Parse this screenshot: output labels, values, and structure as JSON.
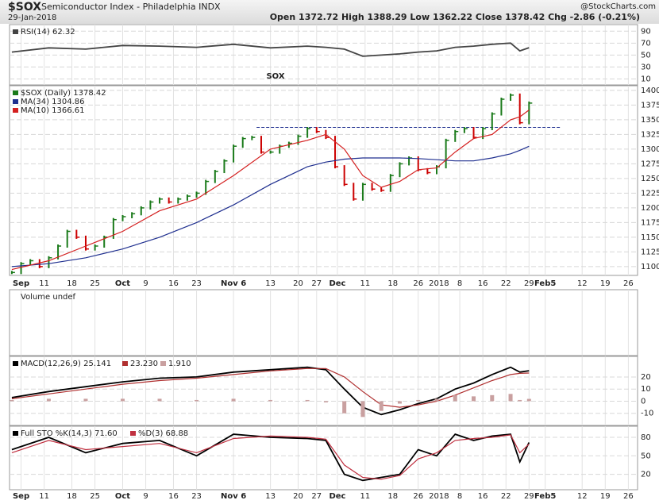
{
  "header": {
    "symbol": "$SOX",
    "name": "Semiconductor Index - Philadelphia INDX",
    "date": "29-Jan-2018",
    "source": "@StockCharts.com",
    "ohlc": "Open 1372.72  High 1388.29  Low 1362.22  Close 1378.42  Chg -2.86 (-0.21%)"
  },
  "x_axis": {
    "xlim": [
      -0.5,
      135.5
    ],
    "xticks": [
      {
        "value": 2,
        "label": "Sep"
      },
      {
        "value": 7,
        "label": "11"
      },
      {
        "value": 13,
        "label": "18"
      },
      {
        "value": 18,
        "label": "25"
      },
      {
        "value": 24,
        "label": "Oct"
      },
      {
        "value": 29,
        "label": "9"
      },
      {
        "value": 35,
        "label": "16"
      },
      {
        "value": 40,
        "label": "23"
      },
      {
        "value": 48,
        "label": "Nov 6"
      },
      {
        "value": 56,
        "label": "13"
      },
      {
        "value": 62,
        "label": "20"
      },
      {
        "value": 66,
        "label": "27"
      },
      {
        "value": 70.5,
        "label": "Dec"
      },
      {
        "value": 76.5,
        "label": "11"
      },
      {
        "value": 82.5,
        "label": "18"
      },
      {
        "value": 88,
        "label": "26"
      },
      {
        "value": 92.5,
        "label": "2018"
      },
      {
        "value": 97,
        "label": "8"
      },
      {
        "value": 102,
        "label": "16"
      },
      {
        "value": 107,
        "label": "22"
      },
      {
        "value": 112,
        "label": "29"
      },
      {
        "value": 115.5,
        "label": "Feb5"
      },
      {
        "value": 123.5,
        "label": "12"
      },
      {
        "value": 128.5,
        "label": "19"
      },
      {
        "value": 133.5,
        "label": "26"
      }
    ]
  },
  "chart_data": [
    {
      "type": "line",
      "ylim": [
        0,
        101
      ],
      "yticks": [
        10,
        30,
        50,
        70,
        90
      ],
      "x": [
        0,
        8,
        16,
        24,
        32,
        40,
        48,
        56,
        64,
        68,
        72,
        76,
        80,
        84,
        88,
        92,
        96,
        100,
        104,
        108,
        110,
        112
      ],
      "series": [
        {
          "name": "RSI(14) 62.32",
          "color": "#444444",
          "values": [
            55,
            62,
            60,
            66,
            65,
            63,
            68,
            62,
            65,
            63,
            60,
            48,
            50,
            52,
            55,
            57,
            63,
            65,
            68,
            70,
            57,
            62.32
          ]
        }
      ]
    },
    {
      "type": "price",
      "ylim": [
        1085,
        1408
      ],
      "yticks": [
        1100,
        1125,
        1150,
        1175,
        1200,
        1225,
        1250,
        1275,
        1300,
        1325,
        1350,
        1375,
        1400
      ],
      "annotation": "SOX",
      "reference_line": {
        "value": 1337,
        "x": [
          53,
          119
        ]
      },
      "up_color": "#1a7a1a",
      "down_color": "#cc0000",
      "series": [
        {
          "name": "$SOX (Daily) 1378.42",
          "color": "#1a7a1a",
          "x": [
            0,
            2,
            4,
            6,
            8,
            10,
            12,
            14,
            16,
            18,
            20,
            22,
            24,
            26,
            28,
            30,
            32,
            34,
            36,
            38,
            40,
            42,
            44,
            46,
            48,
            50,
            52,
            54,
            56,
            58,
            60,
            62,
            64,
            66,
            68,
            70,
            72,
            74,
            76,
            78,
            80,
            82,
            84,
            86,
            88,
            90,
            92,
            94,
            96,
            98,
            100,
            102,
            104,
            106,
            108,
            110,
            112
          ],
          "values": [
            1090,
            1105,
            1110,
            1100,
            1115,
            1135,
            1160,
            1150,
            1130,
            1135,
            1150,
            1180,
            1185,
            1190,
            1200,
            1210,
            1215,
            1210,
            1215,
            1220,
            1225,
            1245,
            1262,
            1280,
            1305,
            1318,
            1320,
            1295,
            1295,
            1305,
            1310,
            1322,
            1335,
            1330,
            1320,
            1270,
            1240,
            1215,
            1240,
            1232,
            1230,
            1255,
            1275,
            1285,
            1265,
            1260,
            1270,
            1315,
            1330,
            1335,
            1320,
            1335,
            1360,
            1385,
            1392,
            1345,
            1378.42
          ]
        },
        {
          "name": "MA(34) 1304.86",
          "color": "#1f2f8f",
          "x": [
            0,
            8,
            16,
            24,
            32,
            40,
            48,
            56,
            64,
            68,
            72,
            76,
            80,
            84,
            88,
            92,
            96,
            100,
            104,
            108,
            110,
            112
          ],
          "values": [
            1100,
            1105,
            1115,
            1130,
            1150,
            1175,
            1205,
            1240,
            1270,
            1278,
            1283,
            1285,
            1285,
            1285,
            1284,
            1282,
            1280,
            1280,
            1285,
            1292,
            1298,
            1304.86
          ]
        },
        {
          "name": "MA(10) 1366.61",
          "color": "#d42020",
          "x": [
            0,
            8,
            16,
            24,
            32,
            40,
            48,
            56,
            64,
            68,
            72,
            76,
            80,
            84,
            88,
            92,
            96,
            100,
            104,
            108,
            110,
            112
          ],
          "values": [
            1095,
            1110,
            1135,
            1160,
            1195,
            1215,
            1255,
            1300,
            1315,
            1325,
            1300,
            1255,
            1235,
            1245,
            1265,
            1268,
            1295,
            1318,
            1325,
            1350,
            1355,
            1366.61
          ]
        }
      ]
    },
    {
      "type": "volume",
      "title": "Volume undef"
    },
    {
      "type": "macd",
      "ylim": [
        -20,
        37
      ],
      "yticks": [
        -10,
        0,
        10,
        20
      ],
      "x": [
        0,
        8,
        16,
        24,
        32,
        40,
        48,
        56,
        64,
        68,
        72,
        76,
        80,
        84,
        88,
        92,
        96,
        100,
        104,
        108,
        110,
        112
      ],
      "series": [
        {
          "name": "MACD(12,26,9) 25.141",
          "color": "#000000",
          "values": [
            3,
            8,
            12,
            16,
            19,
            20,
            24,
            26,
            28,
            26,
            10,
            -5,
            -11,
            -7,
            -2,
            2,
            10,
            15,
            22,
            28,
            24,
            25.141
          ]
        },
        {
          "name": "23.230",
          "color": "#b03030",
          "values": [
            2,
            6,
            10,
            14,
            17,
            19,
            22,
            25,
            27,
            27,
            20,
            8,
            -3,
            -5,
            -3,
            0,
            5,
            11,
            17,
            22,
            23,
            23.23
          ]
        },
        {
          "name": "1.910",
          "color": "#c9a0a0",
          "kind": "histogram",
          "values": [
            1,
            2,
            2,
            2,
            2,
            1,
            2,
            1,
            1,
            -1,
            -10,
            -13,
            -8,
            -2,
            1,
            2,
            5,
            4,
            5,
            6,
            1,
            1.91
          ]
        }
      ]
    },
    {
      "type": "line",
      "ylim": [
        -5,
        98
      ],
      "yticks": [
        20,
        50,
        80
      ],
      "x": [
        0,
        8,
        16,
        24,
        32,
        40,
        48,
        56,
        64,
        68,
        72,
        76,
        80,
        84,
        88,
        92,
        96,
        100,
        104,
        108,
        110,
        112
      ],
      "series": [
        {
          "name": "Full STO %K(14,3) 71.60",
          "color": "#000000",
          "values": [
            60,
            80,
            55,
            70,
            75,
            50,
            85,
            80,
            78,
            75,
            20,
            10,
            15,
            20,
            60,
            50,
            85,
            75,
            82,
            85,
            40,
            71.6
          ]
        },
        {
          "name": "%D(3) 68.88",
          "color": "#c03040",
          "values": [
            55,
            75,
            60,
            65,
            70,
            55,
            78,
            82,
            80,
            77,
            35,
            15,
            12,
            18,
            45,
            55,
            75,
            78,
            80,
            84,
            55,
            68.88
          ]
        }
      ]
    }
  ]
}
